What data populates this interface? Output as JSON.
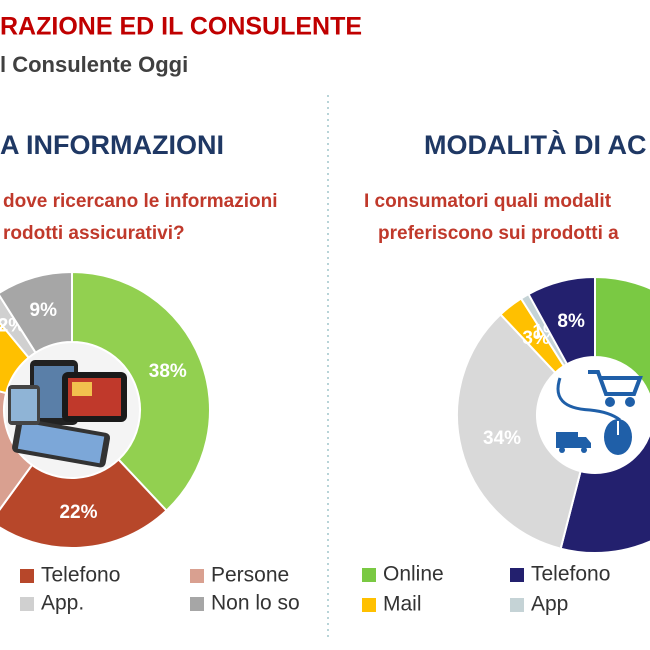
{
  "header": {
    "title": "RAZIONE ED IL CONSULENTE",
    "subtitle": "l Consulente Oggi"
  },
  "charts": [
    {
      "type": "donut",
      "title": "A INFORMAZIONI",
      "question": [
        "dove ricercano le informazioni",
        "rodotti assicurativi?"
      ],
      "categories": [
        null,
        "Telefono",
        "Persone",
        null,
        "App.",
        "Non lo so"
      ],
      "values": [
        38,
        22,
        19,
        10,
        2,
        9
      ],
      "value_labels": [
        "38%",
        "22%",
        null,
        null,
        "2%",
        "9%"
      ],
      "colors": [
        "#92d050",
        "#b7472a",
        "#d9a090",
        "#ffc000",
        "#d0d0d0",
        "#a6a6a6"
      ]
    },
    {
      "type": "donut",
      "title": "MODALITÀ DI AC",
      "question": [
        "I consumatori quali modalit",
        "preferiscono sui prodotti a"
      ],
      "categories": [
        "Online",
        null,
        null,
        "Mail",
        "App",
        "Telefono"
      ],
      "values": [
        24,
        30,
        34,
        3,
        1,
        8
      ],
      "value_labels": [
        null,
        null,
        "34%",
        "3%",
        "1%",
        "8%"
      ],
      "colors": [
        "#7ac943",
        "#23206e",
        "#d9d9d9",
        "#ffc000",
        "#c5d3d6",
        "#23206e"
      ]
    }
  ]
}
